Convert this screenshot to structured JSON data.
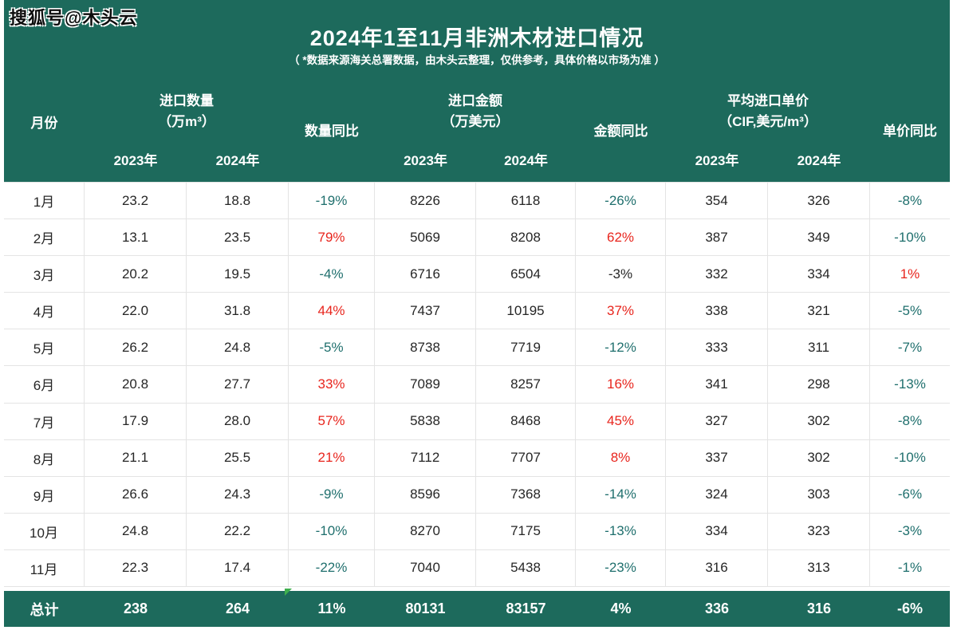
{
  "page": {
    "watermark": "搜狐号@木头云",
    "title": "2024年1至11月非洲木材进口情况",
    "subtitle": "（ *数据来源海关总署数据，由木头云整理，仅供参考，具体价格以市场为准 ）"
  },
  "table_header": {
    "month": "月份",
    "qty_group": "进口数量",
    "qty_unit": "（万m³）",
    "qty_yoy": "数量同比",
    "amt_group": "进口金额",
    "amt_unit": "（万美元）",
    "amt_yoy": "金额同比",
    "price_group": "平均进口单价",
    "price_unit": "（CIF,美元/m³）",
    "price_yoy": "单价同比",
    "y2023": "2023年",
    "y2024": "2024年"
  },
  "colors": {
    "banner_green": "#1d6a5c",
    "negative_teal": "#1f6f6d",
    "positive_red": "#e8251d",
    "text_dark": "#262626",
    "marker_green": "#3faf4e"
  },
  "chart_data": {
    "type": "table",
    "title": "2024年1至11月非洲木材进口情况",
    "columns": [
      "月份",
      "进口数量(万m³) 2023年",
      "进口数量(万m³) 2024年",
      "数量同比",
      "进口金额(万美元) 2023年",
      "进口金额(万美元) 2024年",
      "金额同比",
      "平均进口单价(CIF,美元/m³) 2023年",
      "平均进口单价(CIF,美元/m³) 2024年",
      "单价同比"
    ],
    "rows": [
      [
        "1月",
        "23.2",
        "18.8",
        "-19%",
        "8226",
        "6118",
        "-26%",
        "354",
        "326",
        "-8%"
      ],
      [
        "2月",
        "13.1",
        "23.5",
        "79%",
        "5069",
        "8208",
        "62%",
        "387",
        "349",
        "-10%"
      ],
      [
        "3月",
        "20.2",
        "19.5",
        "-4%",
        "6716",
        "6504",
        "-3%",
        "332",
        "334",
        "1%"
      ],
      [
        "4月",
        "22.0",
        "31.8",
        "44%",
        "7437",
        "10195",
        "37%",
        "338",
        "321",
        "-5%"
      ],
      [
        "5月",
        "26.2",
        "24.8",
        "-5%",
        "8738",
        "7719",
        "-12%",
        "333",
        "311",
        "-7%"
      ],
      [
        "6月",
        "20.8",
        "27.7",
        "33%",
        "7089",
        "8257",
        "16%",
        "341",
        "298",
        "-13%"
      ],
      [
        "7月",
        "17.9",
        "28.0",
        "57%",
        "5838",
        "8468",
        "45%",
        "327",
        "302",
        "-8%"
      ],
      [
        "8月",
        "21.1",
        "25.5",
        "21%",
        "7112",
        "7707",
        "8%",
        "337",
        "302",
        "-10%"
      ],
      [
        "9月",
        "26.6",
        "24.3",
        "-9%",
        "8596",
        "7368",
        "-14%",
        "324",
        "303",
        "-6%"
      ],
      [
        "10月",
        "24.8",
        "22.2",
        "-10%",
        "8270",
        "7175",
        "-13%",
        "334",
        "323",
        "-3%"
      ],
      [
        "11月",
        "22.3",
        "17.4",
        "-22%",
        "7040",
        "5438",
        "-23%",
        "316",
        "313",
        "-1%"
      ]
    ],
    "yoy_colors": [
      [
        "teal",
        "teal",
        "teal"
      ],
      [
        "red",
        "red",
        "teal"
      ],
      [
        "teal",
        "black",
        "red"
      ],
      [
        "red",
        "red",
        "teal"
      ],
      [
        "teal",
        "teal",
        "teal"
      ],
      [
        "red",
        "red",
        "teal"
      ],
      [
        "red",
        "red",
        "teal"
      ],
      [
        "red",
        "red",
        "teal"
      ],
      [
        "teal",
        "teal",
        "teal"
      ],
      [
        "teal",
        "teal",
        "teal"
      ],
      [
        "teal",
        "teal",
        "teal"
      ]
    ],
    "total_row": [
      "总计",
      "238",
      "264",
      "11%",
      "80131",
      "83157",
      "4%",
      "336",
      "316",
      "-6%"
    ]
  }
}
